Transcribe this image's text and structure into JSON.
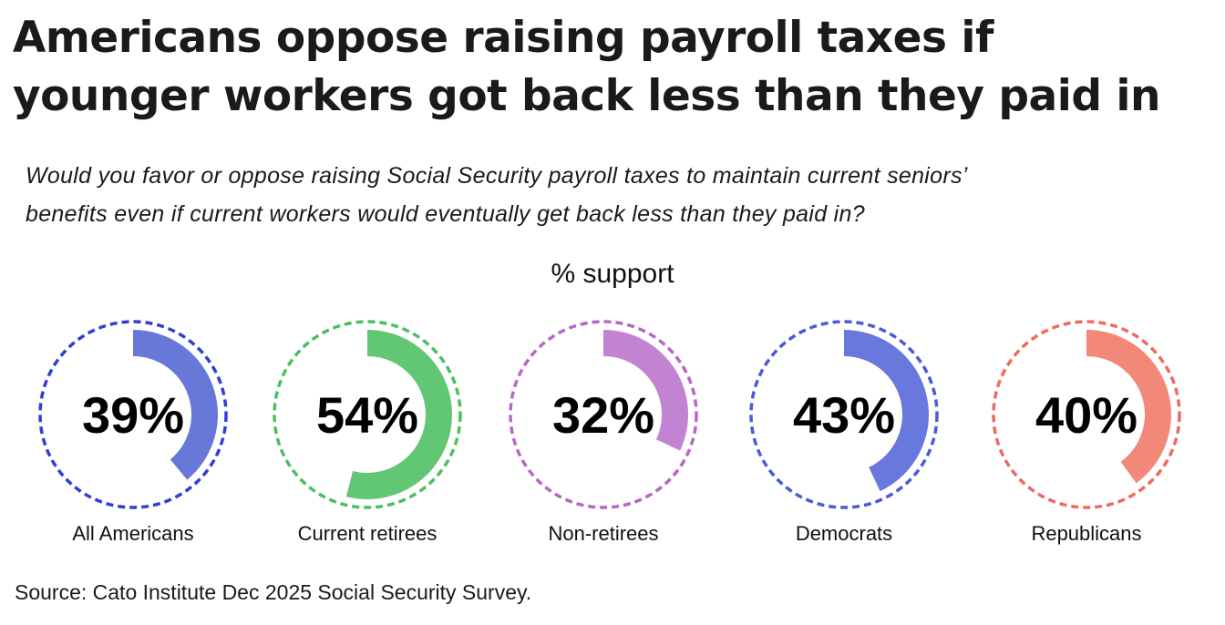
{
  "title_lines": [
    "Americans oppose raising payroll taxes if",
    "younger workers got back less than they paid in"
  ],
  "subtitle_lines": [
    "Would you favor or oppose raising Social Security payroll taxes to maintain current seniors’",
    "benefits even if current workers would eventually get back less than they paid in?"
  ],
  "metric_label": "% support",
  "source": "Source: Cato Institute Dec 2025 Social Security Survey.",
  "chart_data": {
    "type": "donut",
    "unit": "%",
    "categories": [
      "All Americans",
      "Current retirees",
      "Non-retirees",
      "Democrats",
      "Republicans"
    ],
    "values": [
      39,
      54,
      32,
      43,
      40
    ],
    "labels": [
      "39%",
      "54%",
      "32%",
      "43%",
      "40%"
    ],
    "ring_colors": [
      "#2f3fd6",
      "#4cc05f",
      "#b866c8",
      "#4b5bd6",
      "#ef6a5e"
    ],
    "fill_colors": [
      "#6878d8",
      "#62c774",
      "#c383d3",
      "#6878dd",
      "#f28878"
    ]
  }
}
